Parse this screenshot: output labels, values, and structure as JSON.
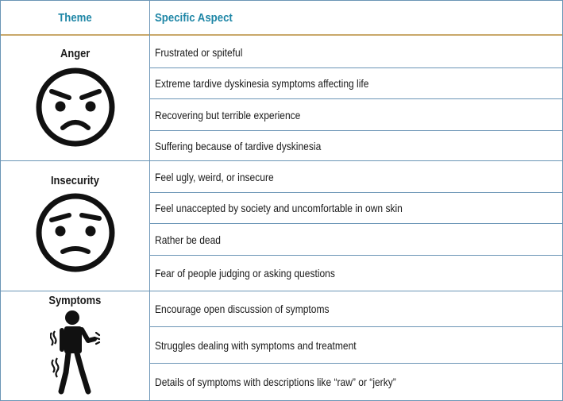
{
  "header": {
    "theme": "Theme",
    "aspect": "Specific Aspect"
  },
  "groups": [
    {
      "theme": "Anger",
      "icon": "angry-face-icon",
      "aspects": [
        "Frustrated or spiteful",
        "Extreme tardive dyskinesia symptoms affecting life",
        "Recovering but terrible experience",
        "Suffering because of tardive dyskinesia"
      ]
    },
    {
      "theme": "Insecurity",
      "icon": "worried-face-icon",
      "aspects": [
        "Feel ugly, weird, or insecure",
        "Feel unaccepted by society and uncomfortable in own skin",
        "Rather be dead",
        "Fear of people judging or asking questions"
      ]
    },
    {
      "theme": "Symptoms",
      "icon": "trembling-person-icon",
      "aspects": [
        "Encourage open discussion of symptoms",
        "Struggles dealing with symptoms and treatment",
        "Details of symptoms with descriptions like “raw” or “jerky”"
      ]
    }
  ],
  "colors": {
    "header_text": "#1e86a6",
    "grid": "#6b95b6",
    "header_rule": "#c9a86a"
  }
}
